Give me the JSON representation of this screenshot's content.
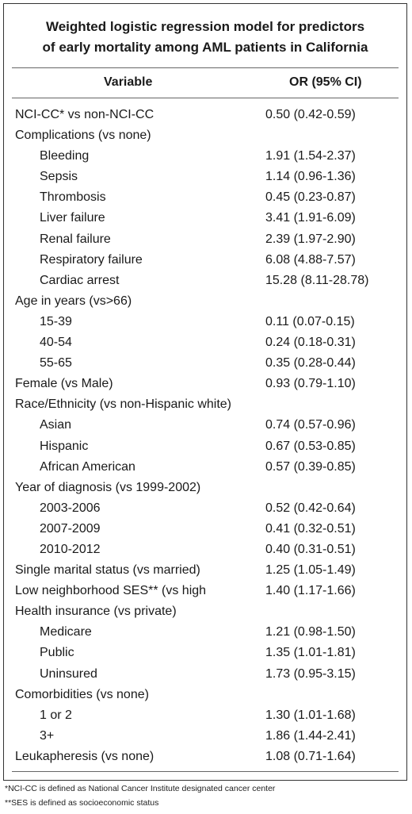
{
  "title_line1": "Weighted logistic regression model for predictors",
  "title_line2": "of early mortality among AML patients in California",
  "headers": {
    "variable": "Variable",
    "or": "OR (95% CI)"
  },
  "rows": [
    {
      "variable": "NCI-CC* vs non-NCI-CC",
      "or": "0.50 (0.42-0.59)",
      "indent": false
    },
    {
      "variable": "Complications (vs none)",
      "or": "",
      "indent": false
    },
    {
      "variable": "Bleeding",
      "or": "1.91 (1.54-2.37)",
      "indent": true
    },
    {
      "variable": "Sepsis",
      "or": "1.14 (0.96-1.36)",
      "indent": true
    },
    {
      "variable": "Thrombosis",
      "or": "0.45 (0.23-0.87)",
      "indent": true
    },
    {
      "variable": "Liver failure",
      "or": "3.41 (1.91-6.09)",
      "indent": true
    },
    {
      "variable": "Renal failure",
      "or": "2.39 (1.97-2.90)",
      "indent": true
    },
    {
      "variable": "Respiratory failure",
      "or": "6.08 (4.88-7.57)",
      "indent": true
    },
    {
      "variable": "Cardiac arrest",
      "or": "15.28 (8.11-28.78)",
      "indent": true
    },
    {
      "variable": "Age in years (vs>66)",
      "or": "",
      "indent": false
    },
    {
      "variable": "15-39",
      "or": "0.11 (0.07-0.15)",
      "indent": true
    },
    {
      "variable": "40-54",
      "or": "0.24 (0.18-0.31)",
      "indent": true
    },
    {
      "variable": "55-65",
      "or": "0.35 (0.28-0.44)",
      "indent": true
    },
    {
      "variable": "Female (vs Male)",
      "or": "0.93 (0.79-1.10)",
      "indent": false
    },
    {
      "variable": "Race/Ethnicity (vs non-Hispanic white)",
      "or": "",
      "indent": false
    },
    {
      "variable": "Asian",
      "or": "0.74 (0.57-0.96)",
      "indent": true
    },
    {
      "variable": "Hispanic",
      "or": "0.67 (0.53-0.85)",
      "indent": true
    },
    {
      "variable": "African American",
      "or": "0.57 (0.39-0.85)",
      "indent": true
    },
    {
      "variable": "Year of diagnosis (vs 1999-2002)",
      "or": "",
      "indent": false
    },
    {
      "variable": "2003-2006",
      "or": "0.52 (0.42-0.64)",
      "indent": true
    },
    {
      "variable": "2007-2009",
      "or": "0.41 (0.32-0.51)",
      "indent": true
    },
    {
      "variable": "2010-2012",
      "or": "0.40 (0.31-0.51)",
      "indent": true
    },
    {
      "variable": "Single marital status (vs married)",
      "or": "1.25 (1.05-1.49)",
      "indent": false
    },
    {
      "variable": "Low neighborhood SES** (vs high",
      "or": "1.40 (1.17-1.66)",
      "indent": false
    },
    {
      "variable": "Health insurance (vs private)",
      "or": "",
      "indent": false
    },
    {
      "variable": "Medicare",
      "or": "1.21 (0.98-1.50)",
      "indent": true
    },
    {
      "variable": "Public",
      "or": "1.35 (1.01-1.81)",
      "indent": true
    },
    {
      "variable": "Uninsured",
      "or": "1.73 (0.95-3.15)",
      "indent": true
    },
    {
      "variable": "Comorbidities (vs none)",
      "or": "",
      "indent": false
    },
    {
      "variable": "1 or 2",
      "or": "1.30 (1.01-1.68)",
      "indent": true
    },
    {
      "variable": "3+",
      "or": "1.86 (1.44-2.41)",
      "indent": true
    },
    {
      "variable": "Leukapheresis (vs none)",
      "or": "1.08 (0.71-1.64)",
      "indent": false
    }
  ],
  "footnotes": [
    "*NCI-CC is defined as National Cancer Institute designated cancer center",
    "**SES is defined as socioeconomic status"
  ]
}
